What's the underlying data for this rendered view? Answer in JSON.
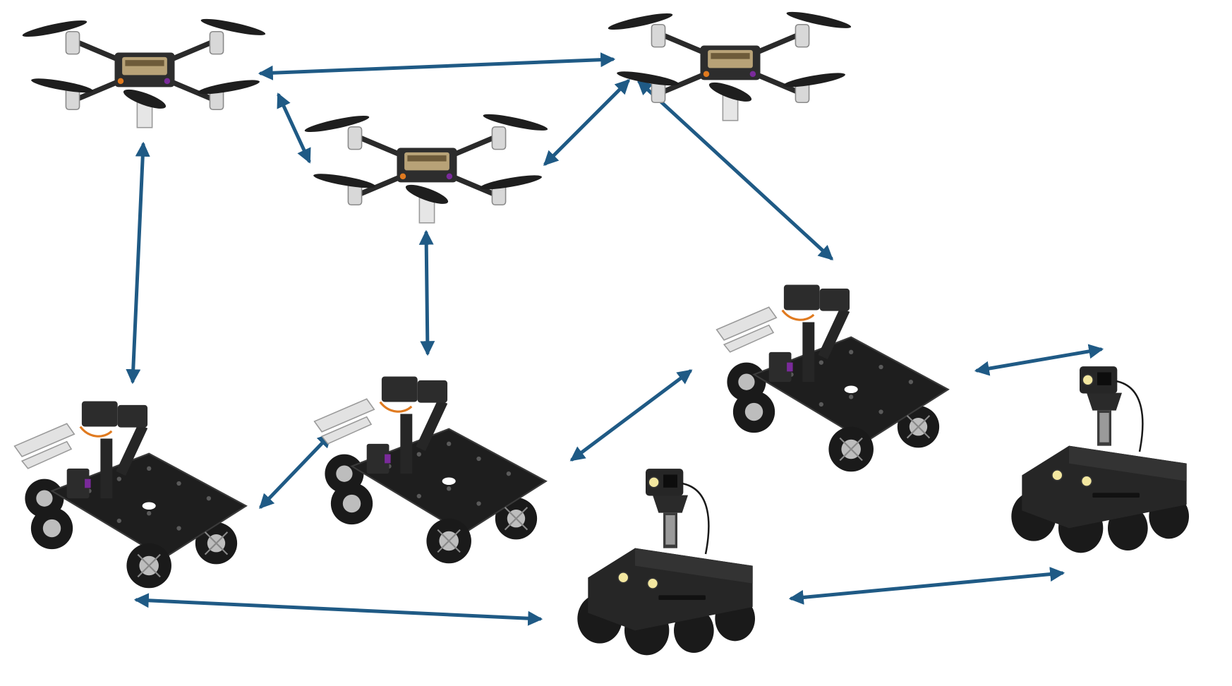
{
  "colors": {
    "link": "#1f5a85",
    "body_dark": "#1c1c1c",
    "body_mid": "#3a3a3a",
    "metal": "#c9c9c9",
    "accent_orange": "#e07a1f",
    "accent_purple": "#7a2a9a",
    "lamp": "#f3e7a0"
  },
  "nodes": [
    {
      "id": "drone-1",
      "kind": "quadrotor-drone"
    },
    {
      "id": "drone-2",
      "kind": "quadrotor-drone"
    },
    {
      "id": "drone-3",
      "kind": "quadrotor-drone"
    },
    {
      "id": "mecanum-1",
      "kind": "mecanum-rover-with-arm"
    },
    {
      "id": "mecanum-2",
      "kind": "mecanum-rover-with-arm"
    },
    {
      "id": "mecanum-3",
      "kind": "mecanum-rover-with-arm"
    },
    {
      "id": "tracked-1",
      "kind": "tracked-rover-with-camera"
    },
    {
      "id": "tracked-2",
      "kind": "tracked-rover-with-camera"
    }
  ],
  "links": [
    {
      "from": "drone-1",
      "to": "drone-3",
      "bidirectional": true
    },
    {
      "from": "drone-1",
      "to": "drone-2",
      "bidirectional": true
    },
    {
      "from": "drone-2",
      "to": "drone-3",
      "bidirectional": true
    },
    {
      "from": "drone-1",
      "to": "mecanum-1",
      "bidirectional": true
    },
    {
      "from": "drone-2",
      "to": "mecanum-2",
      "bidirectional": true
    },
    {
      "from": "drone-3",
      "to": "mecanum-3",
      "bidirectional": true
    },
    {
      "from": "mecanum-1",
      "to": "mecanum-2",
      "bidirectional": true
    },
    {
      "from": "mecanum-2",
      "to": "mecanum-3",
      "bidirectional": true
    },
    {
      "from": "mecanum-3",
      "to": "tracked-2",
      "bidirectional": true
    },
    {
      "from": "mecanum-1",
      "to": "tracked-1",
      "bidirectional": true
    },
    {
      "from": "tracked-1",
      "to": "tracked-2",
      "bidirectional": true
    }
  ]
}
